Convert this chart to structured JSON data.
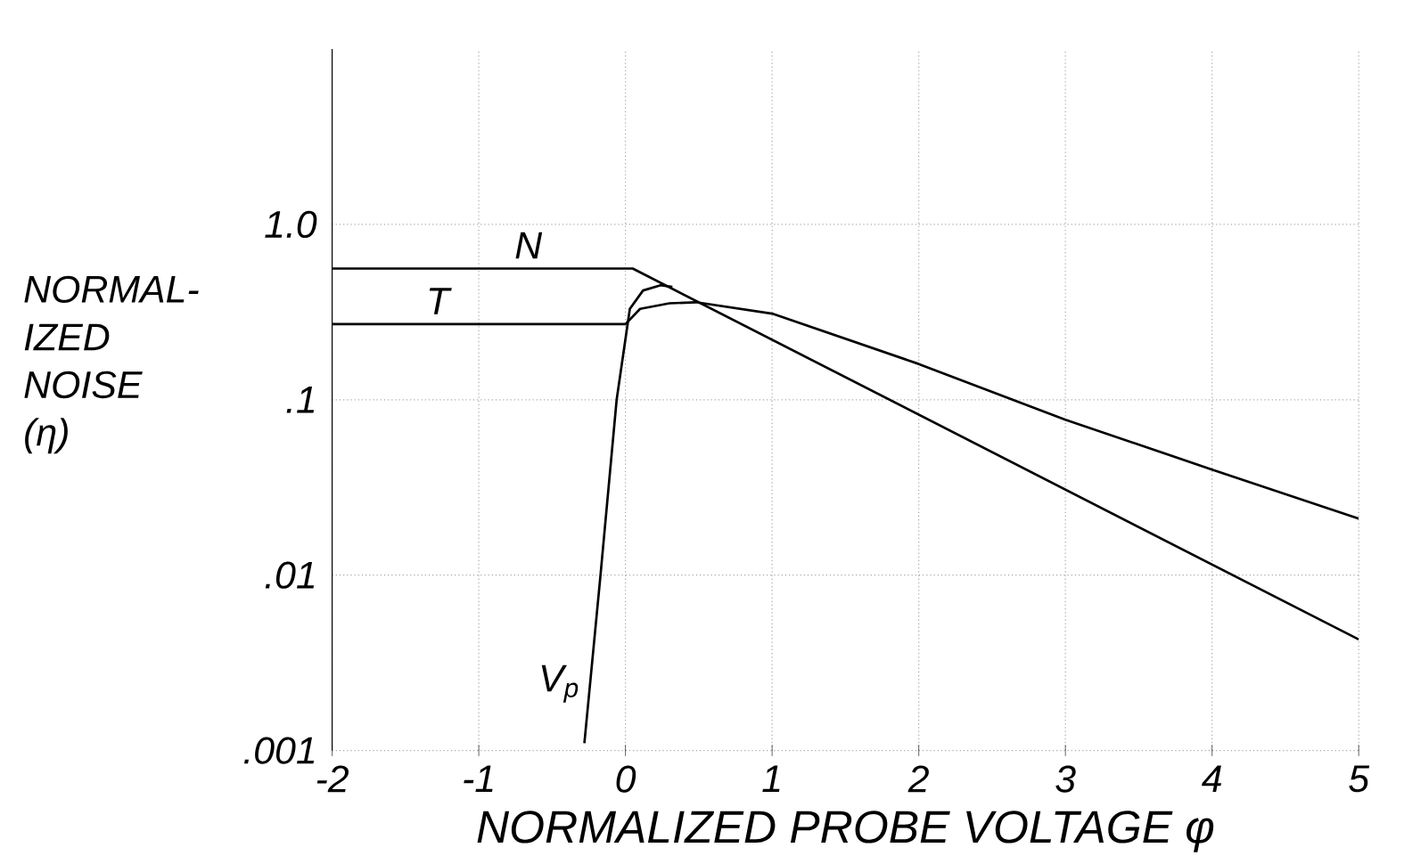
{
  "chart_data": {
    "type": "line",
    "xlabel": "NORMALIZED PROBE VOLTAGE φ",
    "ylabel": "NORMAL-IZED NOISE (η)",
    "log": "y",
    "grid": true,
    "line_style": "solid",
    "marker": "none",
    "xlim": [
      -2,
      5
    ],
    "ylim": [
      0.001,
      10
    ],
    "xticks": [
      -2,
      -1,
      0,
      1,
      2,
      3,
      4,
      5
    ],
    "yticks": [
      {
        "value": 1,
        "label": "1.0"
      },
      {
        "value": 0.1,
        "label": ".1"
      },
      {
        "value": 0.01,
        "label": ".01"
      },
      {
        "value": 0.001,
        "label": ".001"
      }
    ],
    "series": [
      {
        "name": "N",
        "color": "#000000",
        "x": [
          -2,
          0.05,
          5
        ],
        "values": [
          0.56,
          0.56,
          0.0043
        ]
      },
      {
        "name": "T",
        "color": "#000000",
        "x": [
          -2,
          0,
          0.1,
          0.3,
          0.48,
          1,
          2,
          3,
          4,
          5
        ],
        "values": [
          0.27,
          0.27,
          0.33,
          0.355,
          0.36,
          0.31,
          0.16,
          0.077,
          0.04,
          0.021
        ]
      },
      {
        "name": "V$_{p}$",
        "color": "#000000",
        "x": [
          -0.28,
          -0.17,
          -0.06,
          0.03,
          0.12,
          0.24,
          0.32
        ],
        "values": [
          0.0011,
          0.01,
          0.1,
          0.33,
          0.42,
          0.45,
          0.44
        ]
      }
    ]
  }
}
